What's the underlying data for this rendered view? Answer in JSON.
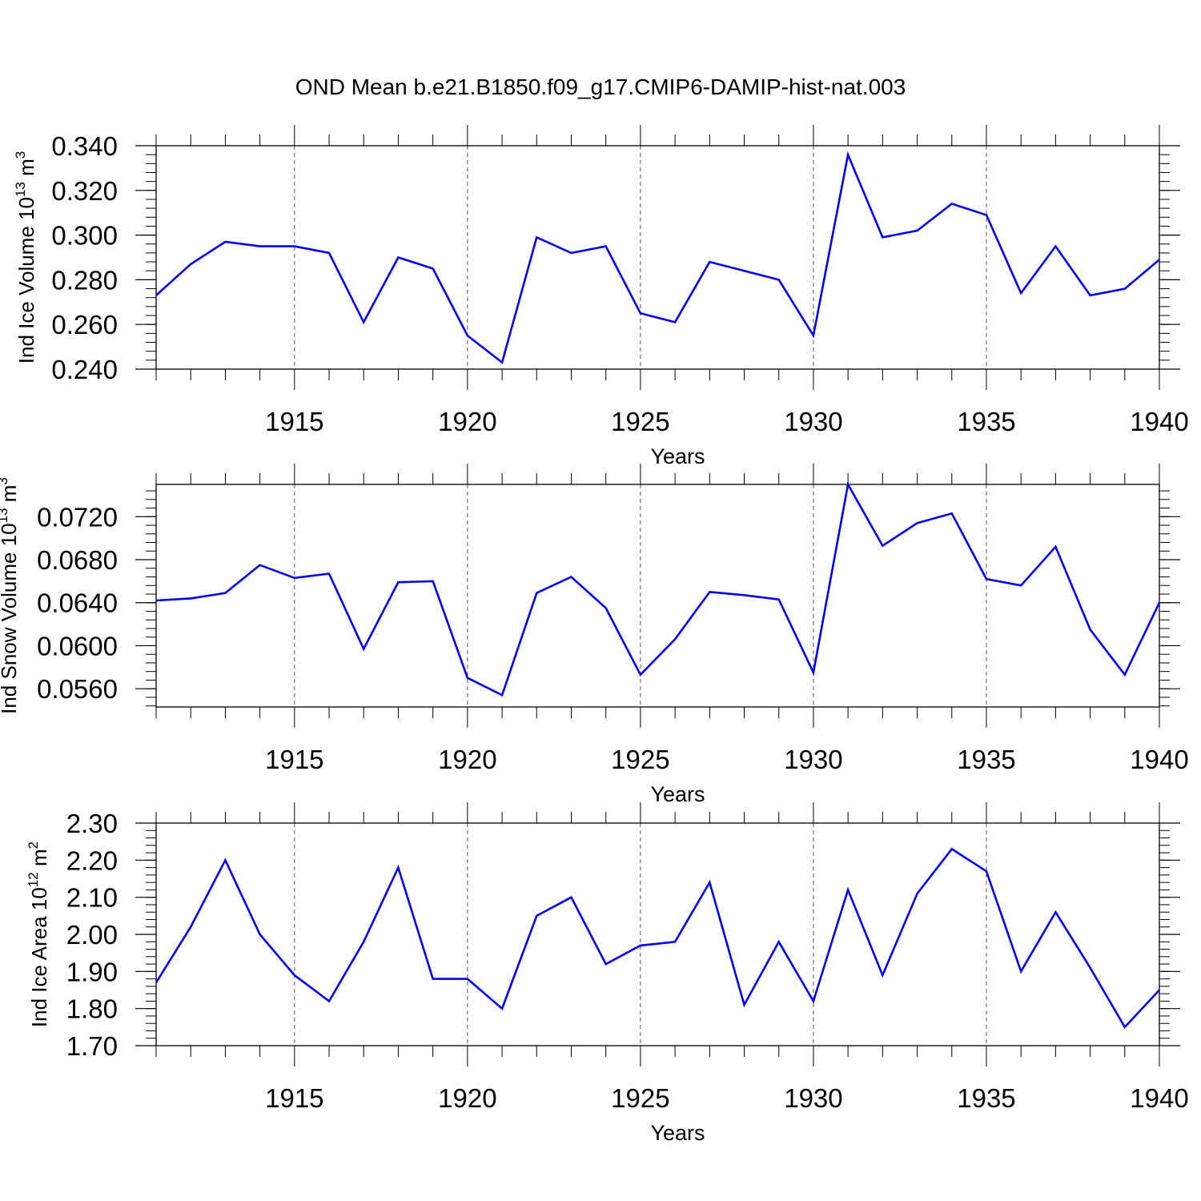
{
  "title": "OND Mean b.e21.B1850.f09_g17.CMIP6-DAMIP-hist-nat.003",
  "colors": {
    "line": "#0000ff",
    "axis": "#000000",
    "grid": "#555555"
  },
  "chart_data": [
    {
      "type": "line",
      "ylabel": {
        "base": "Ind Ice Volume 10",
        "exp": "13",
        "unit": " m",
        "unit_exp": "3"
      },
      "xlabel": "Years",
      "xlim": [
        1911,
        1940
      ],
      "ylim": [
        0.24,
        0.34
      ],
      "yticks": [
        "0.240",
        "0.260",
        "0.280",
        "0.300",
        "0.320",
        "0.340"
      ],
      "xticks": [
        "1915",
        "1920",
        "1925",
        "1930",
        "1935",
        "1940"
      ],
      "grid": "vertical dashed at major x ticks",
      "x": [
        1911,
        1912,
        1913,
        1914,
        1915,
        1916,
        1917,
        1918,
        1919,
        1920,
        1921,
        1922,
        1923,
        1924,
        1925,
        1926,
        1927,
        1928,
        1929,
        1930,
        1931,
        1932,
        1933,
        1934,
        1935,
        1936,
        1937,
        1938,
        1939,
        1940
      ],
      "values": [
        0.273,
        0.287,
        0.297,
        0.295,
        0.295,
        0.292,
        0.261,
        0.29,
        0.285,
        0.255,
        0.243,
        0.299,
        0.292,
        0.295,
        0.265,
        0.261,
        0.288,
        0.284,
        0.28,
        0.255,
        0.336,
        0.299,
        0.302,
        0.314,
        0.309,
        0.274,
        0.295,
        0.273,
        0.276,
        0.289
      ]
    },
    {
      "type": "line",
      "ylabel": {
        "base": "Ind Snow Volume 10",
        "exp": "13",
        "unit": " m",
        "unit_exp": "3"
      },
      "xlabel": "Years",
      "xlim": [
        1911,
        1940
      ],
      "ylim": [
        0.0543,
        0.075
      ],
      "yticks": [
        "0.0560",
        "0.0600",
        "0.0640",
        "0.0680",
        "0.0720"
      ],
      "xticks": [
        "1915",
        "1920",
        "1925",
        "1930",
        "1935",
        "1940"
      ],
      "grid": "vertical dashed at major x ticks",
      "x": [
        1911,
        1912,
        1913,
        1914,
        1915,
        1916,
        1917,
        1918,
        1919,
        1920,
        1921,
        1922,
        1923,
        1924,
        1925,
        1926,
        1927,
        1928,
        1929,
        1930,
        1931,
        1932,
        1933,
        1934,
        1935,
        1936,
        1937,
        1938,
        1939,
        1940
      ],
      "values": [
        0.0642,
        0.0644,
        0.0649,
        0.0675,
        0.0663,
        0.0667,
        0.0597,
        0.0659,
        0.066,
        0.057,
        0.0554,
        0.0649,
        0.0664,
        0.0635,
        0.0573,
        0.0606,
        0.065,
        0.0647,
        0.0643,
        0.0575,
        0.075,
        0.0693,
        0.0714,
        0.0723,
        0.0662,
        0.0656,
        0.0692,
        0.0615,
        0.0573,
        0.064
      ]
    },
    {
      "type": "line",
      "ylabel": {
        "base": "Ind Ice Area 10",
        "exp": "12",
        "unit": " m",
        "unit_exp": "2"
      },
      "xlabel": "Years",
      "xlim": [
        1911,
        1940
      ],
      "ylim": [
        1.7,
        2.3
      ],
      "yticks": [
        "1.70",
        "1.80",
        "1.90",
        "2.00",
        "2.10",
        "2.20",
        "2.30"
      ],
      "xticks": [
        "1915",
        "1920",
        "1925",
        "1930",
        "1935",
        "1940"
      ],
      "grid": "vertical dashed at major x ticks",
      "x": [
        1911,
        1912,
        1913,
        1914,
        1915,
        1916,
        1917,
        1918,
        1919,
        1920,
        1921,
        1922,
        1923,
        1924,
        1925,
        1926,
        1927,
        1928,
        1929,
        1930,
        1931,
        1932,
        1933,
        1934,
        1935,
        1936,
        1937,
        1938,
        1939,
        1940
      ],
      "values": [
        1.87,
        2.02,
        2.2,
        2.0,
        1.89,
        1.82,
        1.98,
        2.18,
        1.88,
        1.88,
        1.8,
        2.05,
        2.1,
        1.92,
        1.97,
        1.98,
        2.14,
        1.81,
        1.98,
        1.82,
        2.12,
        1.89,
        2.11,
        2.23,
        2.17,
        1.9,
        2.06,
        1.91,
        1.75,
        1.85
      ]
    }
  ]
}
